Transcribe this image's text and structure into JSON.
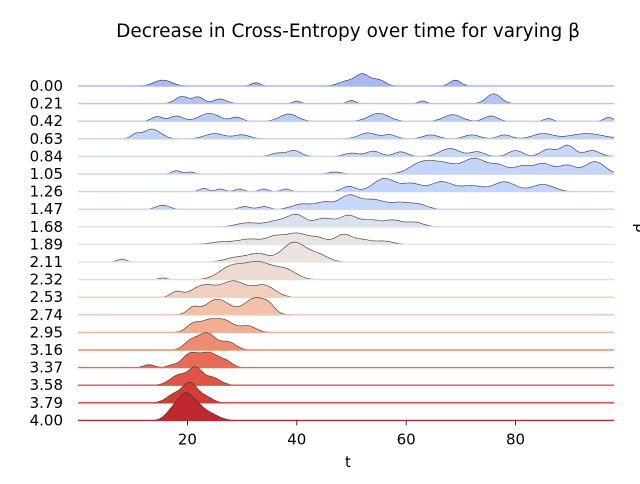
{
  "chart_data": {
    "type": "area",
    "subtype": "ridgeline",
    "title": "Decrease in Cross-Entropy over time for varying β",
    "xlabel": "t",
    "ylabel": "β",
    "xlim": [
      0,
      98
    ],
    "x_ticks": [
      "20",
      "40",
      "60",
      "80"
    ],
    "x_tick_values": [
      20,
      40,
      60,
      80
    ],
    "grid": false,
    "legend": "none",
    "colormap": "coolwarm",
    "series": [
      {
        "name": "0.00",
        "color": "#a7b9f0",
        "peaks": [
          [
            15.5,
            1.6,
            0.45
          ],
          [
            32.5,
            0.8,
            0.25
          ],
          [
            49,
            1.4,
            0.35
          ],
          [
            52,
            1.3,
            0.9
          ],
          [
            55,
            1.2,
            0.45
          ],
          [
            69,
            1.0,
            0.45
          ]
        ]
      },
      {
        "name": "0.21",
        "color": "#b3c6f3",
        "peaks": [
          [
            19,
            1.2,
            0.55
          ],
          [
            22,
            1.0,
            0.5
          ],
          [
            26,
            1.2,
            0.35
          ],
          [
            40,
            0.7,
            0.2
          ],
          [
            50,
            0.7,
            0.25
          ],
          [
            63,
            0.7,
            0.2
          ],
          [
            76,
            1.3,
            0.75
          ]
        ]
      },
      {
        "name": "0.42",
        "color": "#bccdf5",
        "peaks": [
          [
            14.5,
            1.0,
            0.35
          ],
          [
            18,
            1.2,
            0.4
          ],
          [
            24,
            1.8,
            0.6
          ],
          [
            29,
            1.0,
            0.3
          ],
          [
            38.5,
            1.6,
            0.55
          ],
          [
            55,
            1.8,
            0.6
          ],
          [
            68.5,
            1.6,
            0.5
          ],
          [
            75.5,
            1.2,
            0.4
          ],
          [
            86,
            0.8,
            0.2
          ],
          [
            97,
            0.8,
            0.3
          ]
        ]
      },
      {
        "name": "0.63",
        "color": "#c1d4f6",
        "peaks": [
          [
            10.5,
            0.8,
            0.3
          ],
          [
            13.5,
            1.6,
            0.75
          ],
          [
            25,
            1.8,
            0.4
          ],
          [
            30,
            1.4,
            0.3
          ],
          [
            53,
            1.6,
            0.45
          ],
          [
            57,
            1.2,
            0.3
          ],
          [
            64.5,
            1.4,
            0.3
          ],
          [
            72,
            1.4,
            0.3
          ],
          [
            78,
            1.2,
            0.3
          ],
          [
            85,
            1.8,
            0.4
          ],
          [
            93,
            3.0,
            0.4
          ]
        ]
      },
      {
        "name": "0.84",
        "color": "#c8d7f8",
        "peaks": [
          [
            36.5,
            1.2,
            0.25
          ],
          [
            39.5,
            1.2,
            0.45
          ],
          [
            50,
            1.3,
            0.25
          ],
          [
            54,
            1.3,
            0.4
          ],
          [
            59,
            1.2,
            0.35
          ],
          [
            68,
            1.8,
            0.6
          ],
          [
            73,
            1.3,
            0.35
          ],
          [
            80,
            1.3,
            0.45
          ],
          [
            86,
            1.3,
            0.55
          ],
          [
            89.5,
            1.3,
            0.85
          ],
          [
            94,
            1.4,
            0.45
          ]
        ]
      },
      {
        "name": "1.05",
        "color": "#c5d5f9",
        "peaks": [
          [
            18,
            0.8,
            0.25
          ],
          [
            20.5,
            0.8,
            0.15
          ],
          [
            47,
            1.2,
            0.15
          ],
          [
            63,
            2.2,
            0.9
          ],
          [
            67,
            2.0,
            0.7
          ],
          [
            72.5,
            2.2,
            1.2
          ],
          [
            77,
            1.5,
            0.6
          ],
          [
            81,
            1.5,
            0.55
          ],
          [
            85,
            1.8,
            0.8
          ],
          [
            89.5,
            1.5,
            0.65
          ],
          [
            94.5,
            1.8,
            0.95
          ]
        ]
      },
      {
        "name": "1.26",
        "color": "#c3d5fa",
        "peaks": [
          [
            23,
            0.8,
            0.25
          ],
          [
            26,
            0.8,
            0.2
          ],
          [
            29.5,
            0.8,
            0.2
          ],
          [
            34,
            0.8,
            0.2
          ],
          [
            38,
            0.8,
            0.2
          ],
          [
            49.5,
            1.2,
            0.4
          ],
          [
            56,
            2.0,
            1.0
          ],
          [
            61,
            1.8,
            0.6
          ],
          [
            66.5,
            2.0,
            0.75
          ],
          [
            72,
            2.0,
            0.45
          ],
          [
            78,
            2.0,
            0.75
          ],
          [
            85,
            2.0,
            0.55
          ]
        ]
      },
      {
        "name": "1.47",
        "color": "#c6d7f9",
        "peaks": [
          [
            15.5,
            1.2,
            0.3
          ],
          [
            30.5,
            1.0,
            0.2
          ],
          [
            34,
            1.0,
            0.2
          ],
          [
            41,
            1.8,
            0.4
          ],
          [
            45,
            1.5,
            0.5
          ],
          [
            49.5,
            1.8,
            1.05
          ],
          [
            54,
            2.0,
            0.7
          ],
          [
            59,
            2.0,
            0.5
          ],
          [
            62.5,
            1.5,
            0.3
          ]
        ]
      },
      {
        "name": "1.68",
        "color": "#dce1f0",
        "peaks": [
          [
            31,
            2.0,
            0.3
          ],
          [
            36.5,
            2.0,
            0.45
          ],
          [
            40,
            1.6,
            0.85
          ],
          [
            45,
            1.8,
            0.65
          ],
          [
            49.5,
            1.6,
            0.85
          ],
          [
            53.5,
            1.6,
            0.5
          ],
          [
            57.5,
            1.6,
            0.5
          ],
          [
            61.5,
            1.6,
            0.35
          ]
        ]
      },
      {
        "name": "1.89",
        "color": "#e5e5e5",
        "peaks": [
          [
            26.5,
            2.2,
            0.2
          ],
          [
            31.5,
            2.0,
            0.4
          ],
          [
            36,
            1.6,
            0.55
          ],
          [
            40,
            2.0,
            0.85
          ],
          [
            44,
            1.5,
            0.45
          ],
          [
            48.5,
            1.5,
            0.75
          ],
          [
            52,
            1.6,
            0.35
          ],
          [
            56,
            1.6,
            0.25
          ]
        ]
      },
      {
        "name": "2.11",
        "color": "#ebe3df",
        "peaks": [
          [
            8,
            0.8,
            0.22
          ],
          [
            29,
            2.0,
            0.35
          ],
          [
            33,
            1.8,
            0.6
          ],
          [
            39.5,
            2.2,
            1.5
          ],
          [
            44,
            1.8,
            0.5
          ]
        ]
      },
      {
        "name": "2.32",
        "color": "#eddad0",
        "peaks": [
          [
            15.5,
            0.8,
            0.12
          ],
          [
            28,
            2.2,
            0.95
          ],
          [
            33,
            2.5,
            1.3
          ],
          [
            38,
            2.0,
            0.7
          ]
        ]
      },
      {
        "name": "2.53",
        "color": "#efcfbe",
        "peaks": [
          [
            18,
            1.0,
            0.4
          ],
          [
            23,
            2.2,
            0.9
          ],
          [
            28.5,
            2.2,
            1.2
          ],
          [
            34,
            2.0,
            0.9
          ]
        ]
      },
      {
        "name": "2.74",
        "color": "#f2c1a9",
        "peaks": [
          [
            21,
            1.0,
            0.5
          ],
          [
            25.5,
            2.2,
            1.2
          ],
          [
            32.5,
            2.0,
            1.3
          ],
          [
            35,
            1.0,
            0.4
          ]
        ]
      },
      {
        "name": "2.95",
        "color": "#f3ad92",
        "peaks": [
          [
            21,
            1.2,
            0.6
          ],
          [
            24,
            1.6,
            0.9
          ],
          [
            27,
            1.5,
            0.8
          ],
          [
            31,
            1.5,
            0.5
          ]
        ]
      },
      {
        "name": "3.16",
        "color": "#ef8c6f",
        "peaks": [
          [
            20.5,
            1.2,
            0.6
          ],
          [
            23.5,
            1.6,
            1.3
          ],
          [
            27.5,
            1.4,
            0.6
          ]
        ]
      },
      {
        "name": "3.37",
        "color": "#e86c55",
        "peaks": [
          [
            13,
            1.0,
            0.22
          ],
          [
            17,
            0.8,
            0.15
          ],
          [
            20.5,
            1.5,
            1.05
          ],
          [
            24,
            1.6,
            1.1
          ],
          [
            27,
            1.2,
            0.45
          ]
        ]
      },
      {
        "name": "3.58",
        "color": "#de5545",
        "peaks": [
          [
            18.5,
            1.6,
            0.8
          ],
          [
            21.5,
            1.2,
            1.2
          ],
          [
            24.5,
            1.5,
            0.6
          ]
        ]
      },
      {
        "name": "3.79",
        "color": "#d03d35",
        "peaks": [
          [
            17.5,
            1.4,
            0.6
          ],
          [
            20.5,
            1.4,
            1.5
          ],
          [
            23.5,
            1.2,
            0.4
          ]
        ]
      },
      {
        "name": "4.00",
        "color": "#c1282d",
        "peaks": [
          [
            17,
            1.2,
            0.5
          ],
          [
            19.5,
            1.5,
            1.9
          ],
          [
            22,
            1.4,
            0.8
          ],
          [
            24.5,
            1.5,
            0.4
          ]
        ]
      }
    ]
  }
}
